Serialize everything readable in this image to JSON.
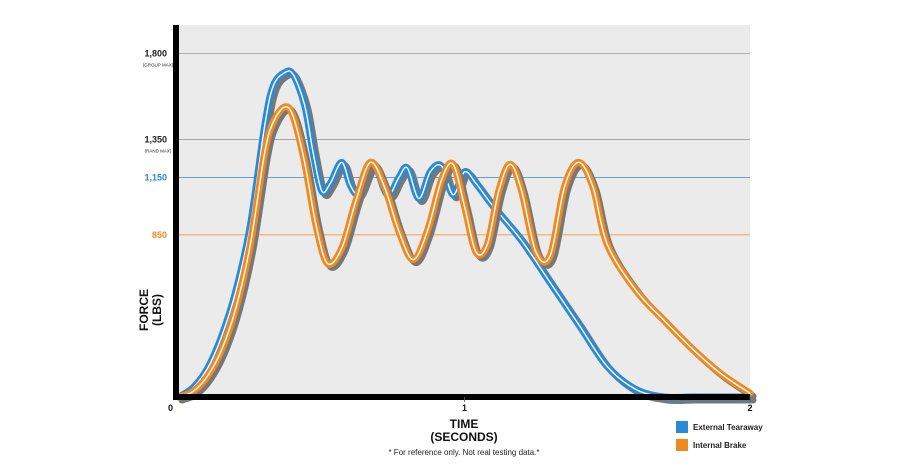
{
  "chart_data": {
    "type": "line",
    "xlabel": "TIME\n(SECONDS)",
    "ylabel": "FORCE\n(LBS)",
    "xlim": [
      0,
      2
    ],
    "ylim": [
      0,
      1950
    ],
    "x_ticks": [
      "0",
      "1",
      "2"
    ],
    "y_ticks": [
      {
        "value": 1800,
        "label": "1,800",
        "sublabel": "(GROUP MAX)",
        "color": "#222222"
      },
      {
        "value": 1350,
        "label": "1,350",
        "sublabel": "(RAND MAX)",
        "color": "#222222"
      },
      {
        "value": 1150,
        "label": "1,150",
        "sublabel": "",
        "color": "#2a8ad6"
      },
      {
        "value": 850,
        "label": "850",
        "sublabel": "",
        "color": "#ef8a22"
      }
    ],
    "grid": true,
    "footnote": "* For reference only. Not real testing data.*",
    "series": [
      {
        "name": "External Tearaway",
        "color": "#2a8ad6",
        "points": [
          [
            0,
            0
          ],
          [
            0.05,
            50
          ],
          [
            0.1,
            150
          ],
          [
            0.15,
            320
          ],
          [
            0.2,
            560
          ],
          [
            0.25,
            900
          ],
          [
            0.3,
            1420
          ],
          [
            0.33,
            1630
          ],
          [
            0.37,
            1700
          ],
          [
            0.4,
            1690
          ],
          [
            0.44,
            1530
          ],
          [
            0.47,
            1280
          ],
          [
            0.5,
            1080
          ],
          [
            0.53,
            1120
          ],
          [
            0.57,
            1230
          ],
          [
            0.6,
            1110
          ],
          [
            0.63,
            1070
          ],
          [
            0.68,
            1220
          ],
          [
            0.73,
            1060
          ],
          [
            0.77,
            1150
          ],
          [
            0.8,
            1200
          ],
          [
            0.84,
            1040
          ],
          [
            0.88,
            1180
          ],
          [
            0.92,
            1210
          ],
          [
            0.96,
            1060
          ],
          [
            1,
            1180
          ],
          [
            1.04,
            1120
          ],
          [
            1.1,
            1000
          ],
          [
            1.2,
            820
          ],
          [
            1.3,
            600
          ],
          [
            1.4,
            380
          ],
          [
            1.5,
            160
          ],
          [
            1.6,
            40
          ],
          [
            1.7,
            0
          ],
          [
            1.8,
            0
          ],
          [
            2,
            0
          ]
        ]
      },
      {
        "name": "Internal Brake",
        "color": "#ef8a22",
        "points": [
          [
            0,
            0
          ],
          [
            0.05,
            30
          ],
          [
            0.1,
            110
          ],
          [
            0.15,
            250
          ],
          [
            0.2,
            470
          ],
          [
            0.25,
            800
          ],
          [
            0.3,
            1280
          ],
          [
            0.33,
            1440
          ],
          [
            0.37,
            1520
          ],
          [
            0.4,
            1470
          ],
          [
            0.44,
            1230
          ],
          [
            0.48,
            900
          ],
          [
            0.52,
            700
          ],
          [
            0.57,
            780
          ],
          [
            0.62,
            1030
          ],
          [
            0.67,
            1230
          ],
          [
            0.72,
            1100
          ],
          [
            0.77,
            870
          ],
          [
            0.82,
            720
          ],
          [
            0.87,
            870
          ],
          [
            0.92,
            1140
          ],
          [
            0.96,
            1220
          ],
          [
            1,
            1000
          ],
          [
            1.04,
            760
          ],
          [
            1.08,
            800
          ],
          [
            1.12,
            1080
          ],
          [
            1.16,
            1220
          ],
          [
            1.2,
            1080
          ],
          [
            1.25,
            760
          ],
          [
            1.3,
            740
          ],
          [
            1.35,
            1100
          ],
          [
            1.4,
            1230
          ],
          [
            1.45,
            1100
          ],
          [
            1.5,
            800
          ],
          [
            1.6,
            560
          ],
          [
            1.7,
            400
          ],
          [
            1.8,
            250
          ],
          [
            1.9,
            120
          ],
          [
            2,
            20
          ]
        ]
      }
    ]
  }
}
